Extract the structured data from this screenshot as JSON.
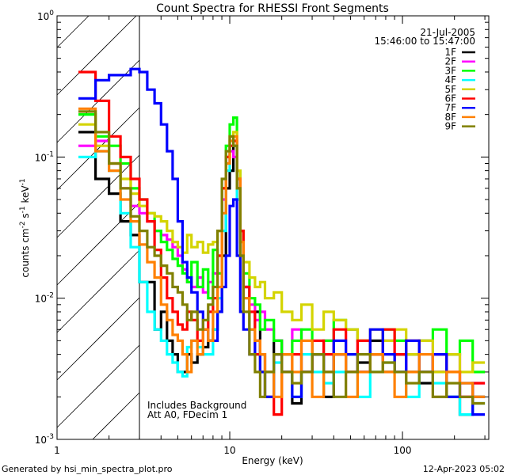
{
  "chart_data": {
    "type": "line",
    "title": "Count Spectra for RHESSI Front Segments",
    "xlabel": "Energy (keV)",
    "ylabel": "counts cm-2 s-1 keV-1",
    "xscale": "log",
    "yscale": "log",
    "xlim": [
      1,
      316
    ],
    "ylim": [
      0.001,
      1
    ],
    "x_ticks": [
      {
        "v": 1,
        "label": "1"
      },
      {
        "v": 10,
        "label": "10"
      },
      {
        "v": 100,
        "label": "100"
      }
    ],
    "y_ticks": [
      {
        "v": 1,
        "base": "10",
        "exp": "0"
      },
      {
        "v": 0.1,
        "base": "10",
        "exp": "-1"
      },
      {
        "v": 0.01,
        "base": "10",
        "exp": "-2"
      },
      {
        "v": 0.001,
        "base": "10",
        "exp": "-3"
      }
    ],
    "legend": {
      "placement": "top-right",
      "date": "21-Jul-2005",
      "time_range": "15:46:00 to 15:47:00"
    },
    "annotations": [
      "Includes Background",
      "Att A0, FDecim 1"
    ],
    "shaded_region_below_keV": 3,
    "energy_edges": [
      1.33,
      1.67,
      2,
      2.33,
      2.67,
      3,
      3.33,
      3.67,
      4,
      4.33,
      4.67,
      5,
      5.33,
      5.67,
      6,
      6.5,
      7,
      7.5,
      8,
      8.5,
      9,
      9.5,
      10,
      10.5,
      11,
      11.5,
      12,
      13,
      14,
      15,
      16,
      18,
      20,
      23,
      26,
      30,
      35,
      40,
      47,
      55,
      65,
      77,
      90,
      105,
      125,
      150,
      180,
      215,
      255,
      300
    ],
    "series": [
      {
        "name": "1F",
        "color": "#000000",
        "values": [
          0.15,
          0.07,
          0.055,
          0.035,
          0.028,
          0.013,
          0.013,
          0.006,
          0.008,
          0.005,
          0.004,
          0.003,
          0.003,
          0.004,
          0.0035,
          0.004,
          0.0045,
          0.005,
          0.006,
          0.008,
          0.02,
          0.06,
          0.08,
          0.12,
          0.06,
          0.03,
          0.012,
          0.006,
          0.008,
          0.004,
          0.003,
          0.005,
          0.003,
          0.0018,
          0.003,
          0.004,
          0.002,
          0.004,
          0.003,
          0.0035,
          0.005,
          0.003,
          0.004,
          0.003,
          0.0025,
          0.003,
          0.002,
          0.0015,
          0.002
        ]
      },
      {
        "name": "2F",
        "color": "#ff00ff",
        "values": [
          0.12,
          0.13,
          0.09,
          0.06,
          0.045,
          0.04,
          0.035,
          0.03,
          0.028,
          0.026,
          0.023,
          0.02,
          0.016,
          0.013,
          0.012,
          0.014,
          0.011,
          0.013,
          0.015,
          0.02,
          0.05,
          0.09,
          0.11,
          0.1,
          0.05,
          0.02,
          0.012,
          0.009,
          0.007,
          0.008,
          0.006,
          0.005,
          0.004,
          0.006,
          0.003,
          0.004,
          0.005,
          0.004,
          0.006,
          0.003,
          0.004,
          0.005,
          0.003,
          0.004,
          0.005,
          0.003,
          0.004,
          0.002,
          0.0025
        ]
      },
      {
        "name": "3F",
        "color": "#00ff00",
        "values": [
          0.2,
          0.14,
          0.12,
          0.09,
          0.06,
          0.05,
          0.04,
          0.03,
          0.025,
          0.022,
          0.019,
          0.017,
          0.015,
          0.013,
          0.018,
          0.012,
          0.016,
          0.01,
          0.022,
          0.015,
          0.06,
          0.12,
          0.17,
          0.19,
          0.08,
          0.03,
          0.015,
          0.01,
          0.009,
          0.006,
          0.007,
          0.005,
          0.004,
          0.005,
          0.006,
          0.004,
          0.005,
          0.007,
          0.006,
          0.005,
          0.004,
          0.006,
          0.005,
          0.004,
          0.005,
          0.006,
          0.004,
          0.005,
          0.003
        ]
      },
      {
        "name": "4F",
        "color": "#00ffff",
        "values": [
          0.1,
          0.11,
          0.08,
          0.04,
          0.023,
          0.013,
          0.008,
          0.006,
          0.005,
          0.004,
          0.0035,
          0.003,
          0.0028,
          0.0045,
          0.005,
          0.0045,
          0.004,
          0.004,
          0.006,
          0.01,
          0.03,
          0.08,
          0.12,
          0.13,
          0.05,
          0.02,
          0.01,
          0.006,
          0.004,
          0.003,
          0.002,
          0.0035,
          0.003,
          0.002,
          0.004,
          0.003,
          0.0025,
          0.003,
          0.004,
          0.002,
          0.003,
          0.0035,
          0.003,
          0.002,
          0.003,
          0.0025,
          0.002,
          0.0015,
          0.0018
        ]
      },
      {
        "name": "5F",
        "color": "#d4d400",
        "values": [
          0.17,
          0.12,
          0.09,
          0.07,
          0.055,
          0.045,
          0.04,
          0.038,
          0.035,
          0.03,
          0.025,
          0.023,
          0.021,
          0.028,
          0.023,
          0.025,
          0.021,
          0.024,
          0.025,
          0.03,
          0.06,
          0.1,
          0.14,
          0.15,
          0.08,
          0.03,
          0.018,
          0.014,
          0.012,
          0.013,
          0.01,
          0.011,
          0.008,
          0.007,
          0.009,
          0.006,
          0.008,
          0.007,
          0.006,
          0.005,
          0.006,
          0.005,
          0.006,
          0.004,
          0.005,
          0.003,
          0.004,
          0.003,
          0.0035
        ]
      },
      {
        "name": "6F",
        "color": "#ff0000",
        "values": [
          0.4,
          0.25,
          0.14,
          0.1,
          0.07,
          0.05,
          0.035,
          0.022,
          0.014,
          0.01,
          0.008,
          0.0065,
          0.006,
          0.008,
          0.007,
          0.005,
          0.006,
          0.008,
          0.01,
          0.02,
          0.06,
          0.1,
          0.12,
          0.13,
          0.07,
          0.03,
          0.012,
          0.008,
          0.004,
          0.003,
          0.002,
          0.0015,
          0.003,
          0.004,
          0.003,
          0.005,
          0.004,
          0.006,
          0.003,
          0.005,
          0.004,
          0.006,
          0.004,
          0.005,
          0.003,
          0.004,
          0.003,
          0.002,
          0.0025
        ]
      },
      {
        "name": "7F",
        "color": "#0000ff",
        "values": [
          0.26,
          0.35,
          0.38,
          0.38,
          0.42,
          0.4,
          0.3,
          0.24,
          0.17,
          0.11,
          0.07,
          0.035,
          0.018,
          0.014,
          0.011,
          0.008,
          0.006,
          0.005,
          0.005,
          0.008,
          0.012,
          0.02,
          0.045,
          0.05,
          0.02,
          0.008,
          0.006,
          0.004,
          0.005,
          0.003,
          0.002,
          0.004,
          0.003,
          0.002,
          0.003,
          0.004,
          0.003,
          0.005,
          0.004,
          0.003,
          0.006,
          0.004,
          0.003,
          0.005,
          0.003,
          0.004,
          0.002,
          0.0025,
          0.0015
        ]
      },
      {
        "name": "8F",
        "color": "#ff8000",
        "values": [
          0.22,
          0.11,
          0.08,
          0.05,
          0.035,
          0.024,
          0.018,
          0.014,
          0.009,
          0.007,
          0.0055,
          0.005,
          0.004,
          0.003,
          0.005,
          0.004,
          0.006,
          0.005,
          0.008,
          0.012,
          0.04,
          0.09,
          0.13,
          0.14,
          0.07,
          0.025,
          0.01,
          0.006,
          0.005,
          0.004,
          0.003,
          0.002,
          0.004,
          0.003,
          0.005,
          0.002,
          0.003,
          0.004,
          0.002,
          0.003,
          0.004,
          0.003,
          0.002,
          0.003,
          0.004,
          0.002,
          0.003,
          0.0025,
          0.002
        ]
      },
      {
        "name": "9F",
        "color": "#808000",
        "values": [
          0.21,
          0.15,
          0.09,
          0.06,
          0.038,
          0.03,
          0.023,
          0.02,
          0.017,
          0.015,
          0.012,
          0.011,
          0.009,
          0.007,
          0.008,
          0.006,
          0.007,
          0.009,
          0.012,
          0.03,
          0.07,
          0.11,
          0.14,
          0.12,
          0.06,
          0.02,
          0.008,
          0.004,
          0.003,
          0.002,
          0.003,
          0.004,
          0.003,
          0.0025,
          0.003,
          0.004,
          0.003,
          0.002,
          0.003,
          0.004,
          0.003,
          0.0035,
          0.003,
          0.0025,
          0.003,
          0.002,
          0.0025,
          0.002,
          0.0018
        ]
      }
    ]
  },
  "footer": {
    "generated_by": "Generated by hsi_min_spectra_plot.pro",
    "timestamp": "12-Apr-2023 05:02"
  }
}
